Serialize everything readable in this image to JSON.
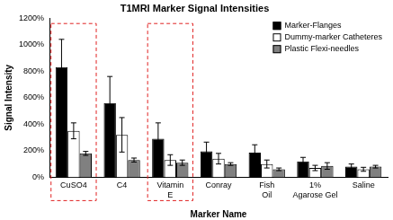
{
  "chart_data": {
    "type": "bar",
    "title": "T1MRI Marker Signal Intensities",
    "x_label": "Marker Name",
    "y_label": "Signal Intensity",
    "categories": [
      "CuSO4",
      "C4",
      "Vitamin E",
      "Conray",
      "Fish Oil",
      "1% Agarose Gel",
      "Saline"
    ],
    "series": [
      {
        "name": "Marker-Flanges",
        "color": "#000000",
        "values": [
          830,
          560,
          290,
          195,
          185,
          120,
          80
        ],
        "error": [
          210,
          200,
          120,
          70,
          60,
          30,
          20
        ]
      },
      {
        "name": "Dummy-marker Catheteres",
        "color": "#ffffff",
        "values": [
          350,
          320,
          130,
          140,
          100,
          70,
          60
        ],
        "error": [
          60,
          130,
          40,
          40,
          30,
          20,
          15
        ]
      },
      {
        "name": "Plastic Flexi-needles",
        "color": "#808080",
        "values": [
          180,
          130,
          110,
          100,
          60,
          85,
          80
        ],
        "error": [
          15,
          15,
          20,
          10,
          10,
          25,
          10
        ]
      }
    ],
    "ylim": [
      0,
      1200
    ],
    "yticks": [
      {
        "value": 0,
        "label": "0%"
      },
      {
        "value": 200,
        "label": "200%"
      },
      {
        "value": 400,
        "label": "400%"
      },
      {
        "value": 600,
        "label": "600%"
      },
      {
        "value": 800,
        "label": "800%"
      },
      {
        "value": 1000,
        "label": "1000%"
      },
      {
        "value": 1200,
        "label": "1200%"
      }
    ],
    "grid": false,
    "legend": "upper right"
  }
}
